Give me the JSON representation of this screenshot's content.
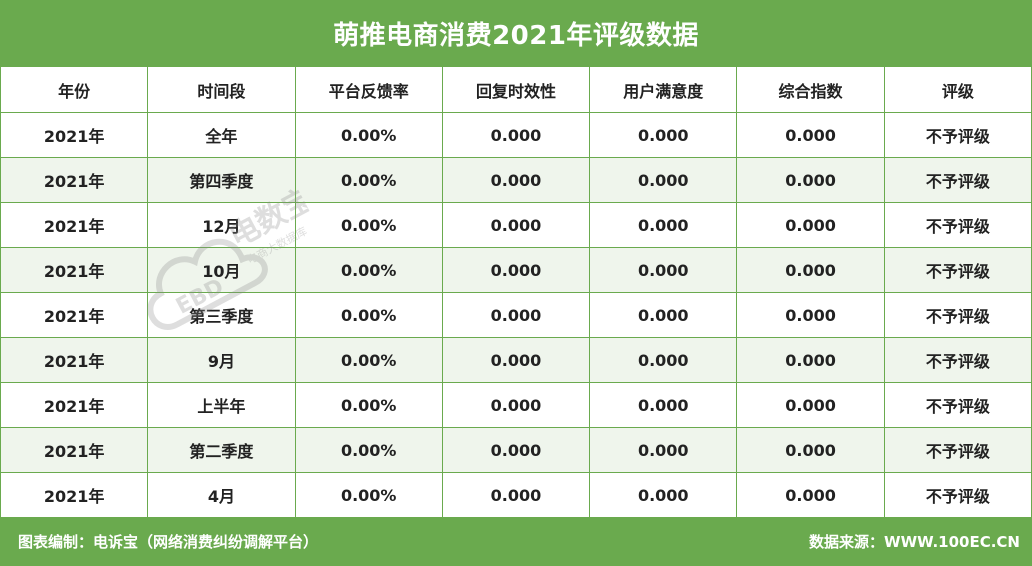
{
  "title": "萌推电商消费2021年评级数据",
  "table": {
    "headers": [
      "年份",
      "时间段",
      "平台反馈率",
      "回复时效性",
      "用户满意度",
      "综合指数",
      "评级"
    ],
    "rows": [
      [
        "2021年",
        "全年",
        "0.00%",
        "0.000",
        "0.000",
        "0.000",
        "不予评级"
      ],
      [
        "2021年",
        "第四季度",
        "0.00%",
        "0.000",
        "0.000",
        "0.000",
        "不予评级"
      ],
      [
        "2021年",
        "12月",
        "0.00%",
        "0.000",
        "0.000",
        "0.000",
        "不予评级"
      ],
      [
        "2021年",
        "10月",
        "0.00%",
        "0.000",
        "0.000",
        "0.000",
        "不予评级"
      ],
      [
        "2021年",
        "第三季度",
        "0.00%",
        "0.000",
        "0.000",
        "0.000",
        "不予评级"
      ],
      [
        "2021年",
        "9月",
        "0.00%",
        "0.000",
        "0.000",
        "0.000",
        "不予评级"
      ],
      [
        "2021年",
        "上半年",
        "0.00%",
        "0.000",
        "0.000",
        "0.000",
        "不予评级"
      ],
      [
        "2021年",
        "第二季度",
        "0.00%",
        "0.000",
        "0.000",
        "0.000",
        "不予评级"
      ],
      [
        "2021年",
        "4月",
        "0.00%",
        "0.000",
        "0.000",
        "0.000",
        "不予评级"
      ]
    ]
  },
  "footer": {
    "left": "图表编制：电诉宝（网络消费纠纷调解平台）",
    "right": "数据来源：WWW.100EC.CN"
  },
  "watermark": {
    "brand": "电数宝",
    "tagline": "电商大数据库",
    "logo_text": "EBD"
  },
  "colors": {
    "accent": "#6aaa4e",
    "row_alt": "#eff5ec",
    "text": "#222222"
  }
}
